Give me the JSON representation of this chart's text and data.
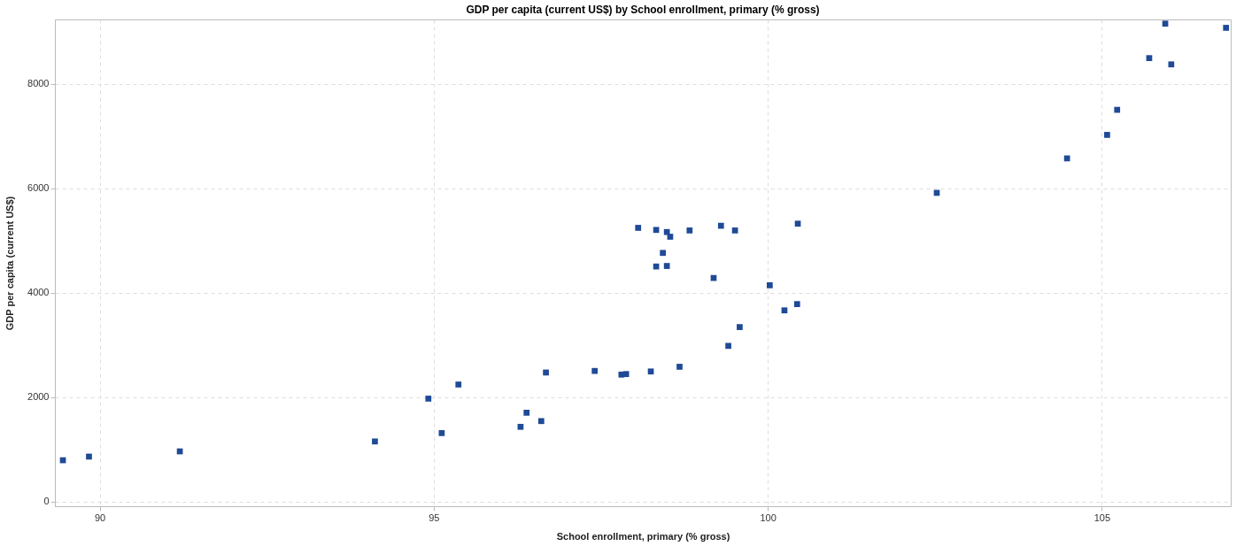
{
  "chart_data": {
    "type": "scatter",
    "title": "GDP per capita (current US$) by School enrollment, primary (% gross)",
    "xlabel": "School enrollment, primary (% gross)",
    "ylabel": "GDP per capita (current US$)",
    "xlim": [
      89.33,
      106.93
    ],
    "ylim": [
      -90,
      9230
    ],
    "xticks": [
      90,
      95,
      100,
      105
    ],
    "yticks": [
      0,
      2000,
      4000,
      6000,
      8000
    ],
    "grid": true,
    "marker": "square",
    "series": [
      {
        "color": "#1f4a96",
        "x": [
          89.45,
          89.84,
          91.2,
          94.12,
          94.92,
          95.12,
          95.37,
          96.3,
          96.39,
          96.61,
          96.68,
          97.41,
          97.81,
          97.88,
          98.25,
          98.68,
          99.41,
          99.58,
          100.25,
          100.44,
          100.03,
          99.19,
          98.33,
          98.49,
          98.43,
          98.06,
          98.33,
          98.49,
          98.54,
          98.83,
          99.3,
          99.51,
          100.45,
          102.53,
          104.48,
          105.08,
          105.23,
          105.71,
          106.04,
          105.95,
          106.86
        ],
        "values": [
          790,
          860,
          960,
          1150,
          1970,
          1310,
          2240,
          1430,
          1700,
          1540,
          2470,
          2500,
          2430,
          2440,
          2490,
          2580,
          2980,
          3340,
          3660,
          3780,
          4140,
          4280,
          4500,
          4510,
          4760,
          5240,
          5200,
          5160,
          5070,
          5190,
          5280,
          5190,
          5320,
          5910,
          6570,
          7020,
          7500,
          8490,
          8370,
          9150,
          9070
        ]
      }
    ]
  }
}
